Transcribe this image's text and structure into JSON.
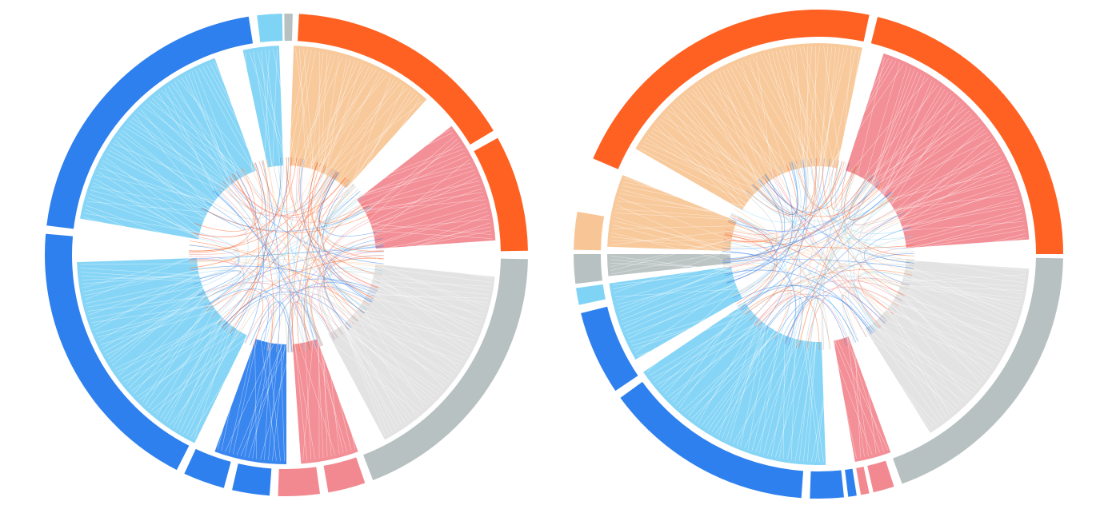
{
  "colors": {
    "orange_dark": "#ff6122",
    "orange_light": "#f8c696",
    "pink": "#f28990",
    "grey": "#b8c1c1",
    "grey_light": "#e2e2e2",
    "blue_dark": "#2e80ee",
    "blue_light": "#7fd3f5"
  },
  "diagrams": [
    {
      "name": "left-chord-diagram",
      "outer_segments": [
        {
          "color": "orange_dark",
          "from": 3,
          "to": 59
        },
        {
          "color": "orange_dark",
          "from": 61,
          "to": 89
        },
        {
          "color": "grey",
          "from": 91,
          "to": 159
        },
        {
          "color": "pink",
          "from": 161,
          "to": 170
        },
        {
          "color": "pink",
          "from": 172,
          "to": 182
        },
        {
          "color": "blue_dark",
          "from": 184,
          "to": 193
        },
        {
          "color": "blue_dark",
          "from": 195,
          "to": 205
        },
        {
          "color": "blue_dark",
          "from": 207,
          "to": 275
        },
        {
          "color": "blue_dark",
          "from": 277,
          "to": 351
        },
        {
          "color": "blue_light",
          "from": 353,
          "to": 359
        },
        {
          "color": "grey",
          "from": 359.5,
          "to": 361.5
        }
      ],
      "inner_wedges": [
        {
          "color": "orange_light",
          "from": 2,
          "to": 42
        },
        {
          "color": "pink",
          "from": 52,
          "to": 86
        },
        {
          "color": "grey_light",
          "from": 96,
          "to": 152
        },
        {
          "color": "pink",
          "from": 160,
          "to": 176
        },
        {
          "color": "blue_dark",
          "from": 180,
          "to": 200
        },
        {
          "color": "blue_light",
          "from": 206,
          "to": 268
        },
        {
          "color": "blue_light",
          "from": 280,
          "to": 340
        },
        {
          "color": "blue_light",
          "from": 348,
          "to": 358
        }
      ]
    },
    {
      "name": "right-chord-diagram",
      "outer_segments": [
        {
          "color": "orange_dark",
          "from": 293,
          "to": 372
        },
        {
          "color": "orange_dark",
          "from": 14,
          "to": 90
        },
        {
          "color": "grey",
          "from": 91,
          "to": 160
        },
        {
          "color": "pink",
          "from": 162,
          "to": 167
        },
        {
          "color": "pink",
          "from": 168,
          "to": 170
        },
        {
          "color": "blue_dark",
          "from": 171,
          "to": 173
        },
        {
          "color": "blue_dark",
          "from": 174,
          "to": 182
        },
        {
          "color": "blue_dark",
          "from": 184,
          "to": 234
        },
        {
          "color": "blue_dark",
          "from": 236,
          "to": 256
        },
        {
          "color": "blue_light",
          "from": 258,
          "to": 262
        },
        {
          "color": "grey",
          "from": 263,
          "to": 270
        },
        {
          "color": "orange_light",
          "from": 271,
          "to": 280
        }
      ],
      "inner_wedges": [
        {
          "color": "orange_light",
          "from": 300,
          "to": 372
        },
        {
          "color": "pink",
          "from": 18,
          "to": 86
        },
        {
          "color": "grey_light",
          "from": 94,
          "to": 148
        },
        {
          "color": "pink",
          "from": 160,
          "to": 170
        },
        {
          "color": "blue_light",
          "from": 178,
          "to": 236
        },
        {
          "color": "blue_light",
          "from": 240,
          "to": 262
        },
        {
          "color": "grey",
          "from": 264,
          "to": 270
        },
        {
          "color": "orange_light",
          "from": 272,
          "to": 292
        }
      ]
    }
  ]
}
